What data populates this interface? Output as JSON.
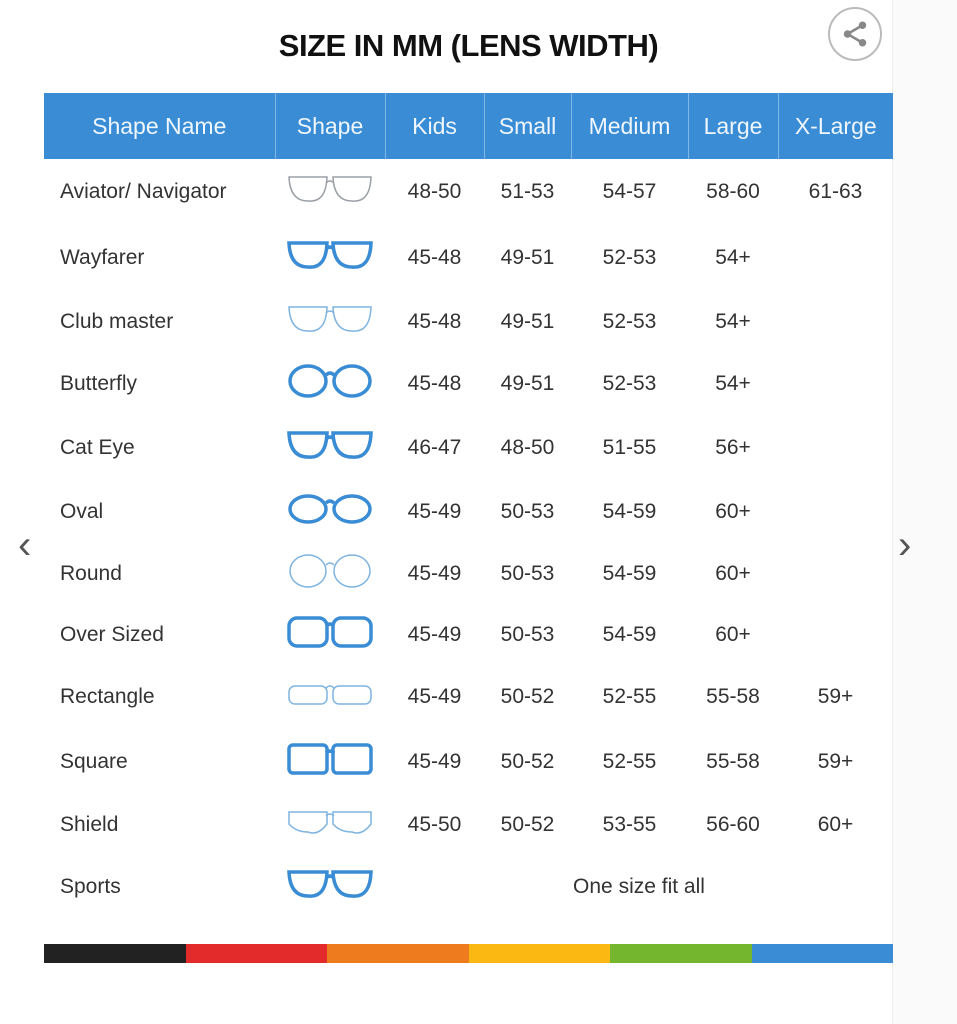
{
  "title": "SIZE IN MM (LENS WIDTH)",
  "share_icon": "share-icon",
  "nav": {
    "prev_icon": "chevron-left-icon",
    "next_icon": "chevron-right-icon",
    "prev": "‹",
    "next": "›"
  },
  "headers": [
    "Shape Name",
    "Shape",
    "Kids",
    "Small",
    "Medium",
    "Large",
    "X-Large"
  ],
  "colors": {
    "header": "#3a8dd4",
    "icon_blue": "#3a8dd4",
    "icon_gray": "#9aa0a6"
  },
  "rows": [
    {
      "name": "Aviator/ Navigator",
      "icon": "aviator",
      "cells": [
        "48-50",
        "51-53",
        "54-57",
        "58-60",
        "61-63"
      ]
    },
    {
      "name": "Wayfarer",
      "icon": "wayfarer",
      "cells": [
        "45-48",
        "49-51",
        "52-53",
        "54+",
        ""
      ]
    },
    {
      "name": "Club master",
      "icon": "clubmaster",
      "cells": [
        "45-48",
        "49-51",
        "52-53",
        "54+",
        ""
      ]
    },
    {
      "name": "Butterfly",
      "icon": "butterfly",
      "cells": [
        "45-48",
        "49-51",
        "52-53",
        "54+",
        ""
      ]
    },
    {
      "name": "Cat Eye",
      "icon": "cateye",
      "cells": [
        "46-47",
        "48-50",
        "51-55",
        "56+",
        ""
      ]
    },
    {
      "name": "Oval",
      "icon": "oval",
      "cells": [
        "45-49",
        "50-53",
        "54-59",
        "60+",
        ""
      ]
    },
    {
      "name": "Round",
      "icon": "round",
      "cells": [
        "45-49",
        "50-53",
        "54-59",
        "60+",
        ""
      ]
    },
    {
      "name": "Over Sized",
      "icon": "oversized",
      "cells": [
        "45-49",
        "50-53",
        "54-59",
        "60+",
        ""
      ]
    },
    {
      "name": "Rectangle",
      "icon": "rectangle",
      "cells": [
        "45-49",
        "50-52",
        "52-55",
        "55-58",
        "59+"
      ]
    },
    {
      "name": "Square",
      "icon": "square",
      "cells": [
        "45-49",
        "50-52",
        "52-55",
        "55-58",
        "59+"
      ]
    },
    {
      "name": "Shield",
      "icon": "shield",
      "cells": [
        "45-50",
        "50-52",
        "53-55",
        "56-60",
        "60+"
      ]
    },
    {
      "name": "Sports",
      "icon": "sports",
      "span": "One size fit all"
    }
  ],
  "color_bar": [
    "#222222",
    "#e32b2b",
    "#ee7b1d",
    "#fbb712",
    "#74b72e",
    "#3a8dd4"
  ]
}
